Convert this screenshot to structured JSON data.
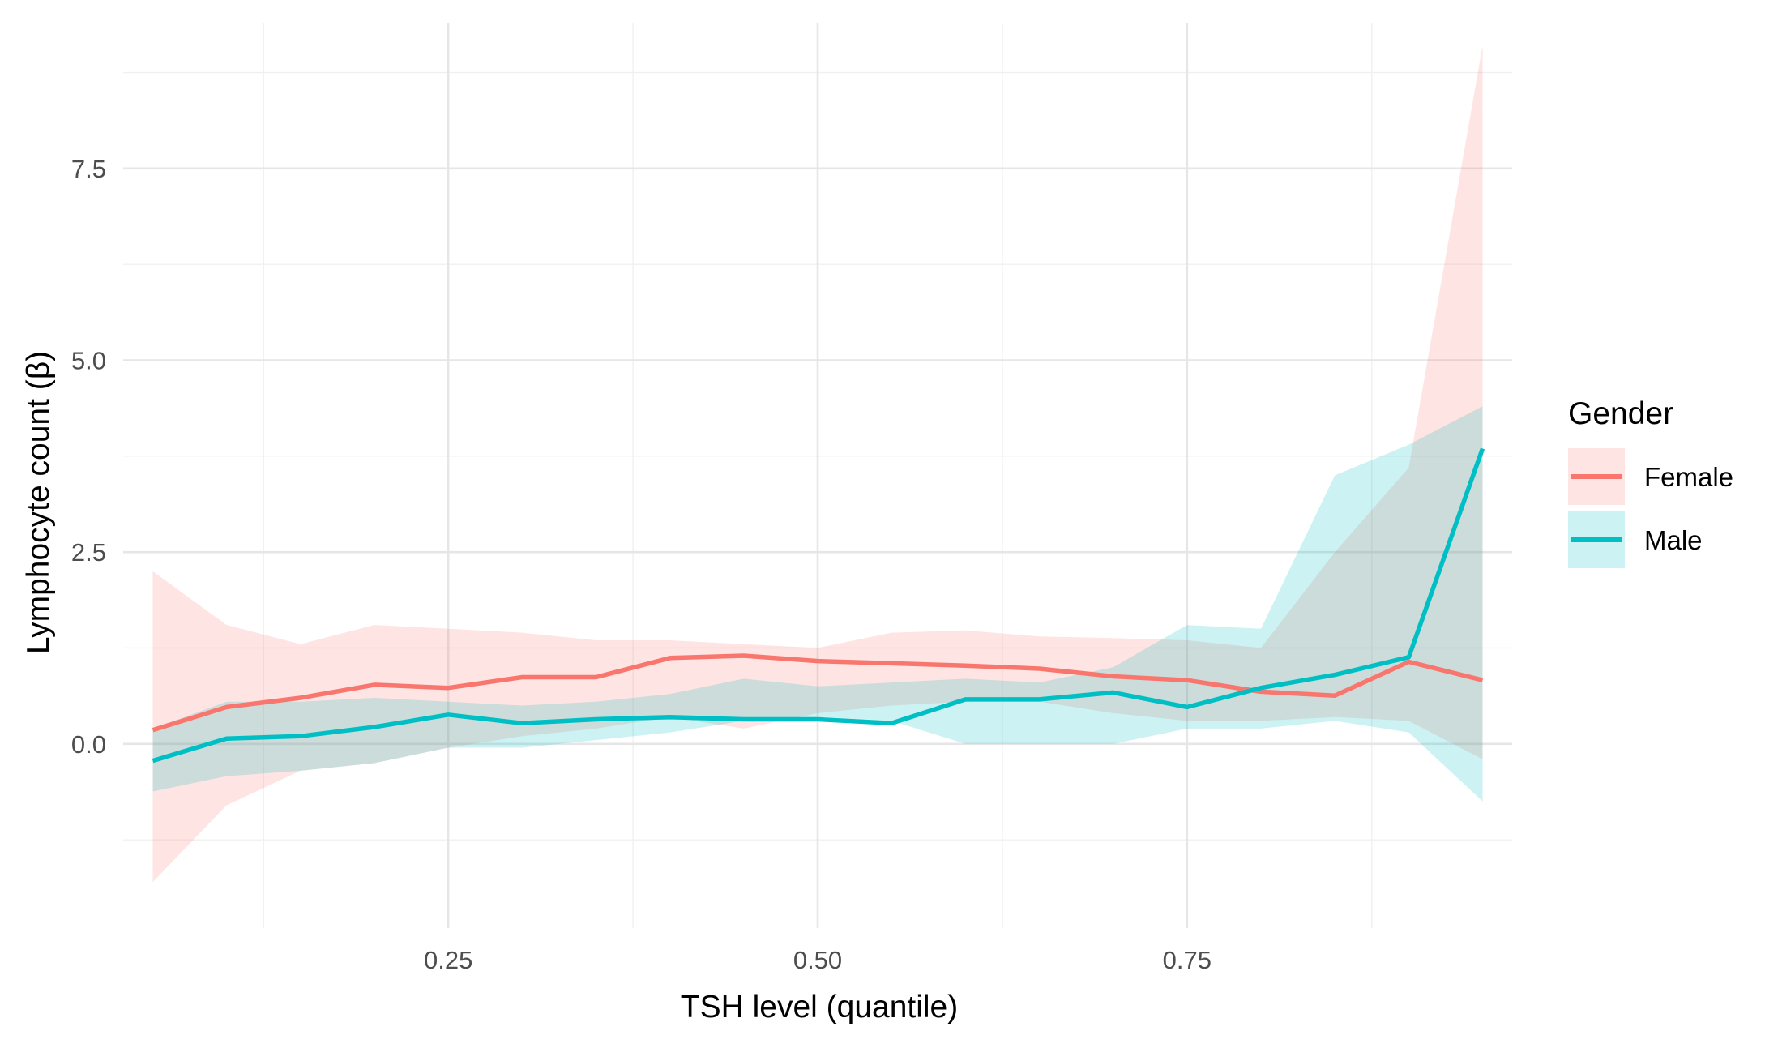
{
  "chart_data": {
    "type": "line",
    "title": "",
    "xlabel": "TSH level (quantile)",
    "ylabel": "Lymphocyte count (β)",
    "xlim": [
      0.03,
      0.97
    ],
    "ylim": [
      -2.4,
      9.4
    ],
    "x_ticks": [
      0.25,
      0.5,
      0.75
    ],
    "x_tick_labels": [
      "0.25",
      "0.50",
      "0.75"
    ],
    "y_ticks": [
      0.0,
      2.5,
      5.0,
      7.5
    ],
    "y_tick_labels": [
      "0.0",
      "2.5",
      "5.0",
      "7.5"
    ],
    "grid": true,
    "legend": {
      "title": "Gender",
      "position": "right"
    },
    "x": [
      0.05,
      0.1,
      0.15,
      0.2,
      0.25,
      0.3,
      0.35,
      0.4,
      0.45,
      0.5,
      0.55,
      0.6,
      0.65,
      0.7,
      0.75,
      0.8,
      0.85,
      0.9,
      0.95
    ],
    "series": [
      {
        "name": "Female",
        "color": "#F8766D",
        "values": [
          0.18,
          0.48,
          0.6,
          0.77,
          0.73,
          0.87,
          0.87,
          1.12,
          1.15,
          1.08,
          1.05,
          1.02,
          0.98,
          0.88,
          0.83,
          0.68,
          0.63,
          1.07,
          0.83
        ],
        "lower": [
          -1.8,
          -0.8,
          -0.35,
          -0.25,
          -0.05,
          0.1,
          0.2,
          0.35,
          0.2,
          0.4,
          0.5,
          0.55,
          0.55,
          0.4,
          0.3,
          0.3,
          0.35,
          0.3,
          -0.2
        ],
        "upper": [
          2.25,
          1.55,
          1.3,
          1.55,
          1.5,
          1.45,
          1.35,
          1.35,
          1.3,
          1.25,
          1.45,
          1.48,
          1.4,
          1.38,
          1.35,
          1.25,
          2.5,
          3.6,
          9.1
        ]
      },
      {
        "name": "Male",
        "color": "#00BFC4",
        "values": [
          -0.22,
          0.07,
          0.1,
          0.22,
          0.38,
          0.27,
          0.32,
          0.35,
          0.32,
          0.32,
          0.27,
          0.58,
          0.58,
          0.67,
          0.48,
          0.73,
          0.9,
          1.13,
          3.85
        ],
        "lower": [
          -0.62,
          -0.42,
          -0.35,
          -0.25,
          -0.05,
          -0.05,
          0.05,
          0.15,
          0.3,
          0.35,
          0.3,
          0.0,
          0.0,
          0.0,
          0.2,
          0.2,
          0.3,
          0.15,
          -0.75
        ],
        "upper": [
          0.2,
          0.55,
          0.55,
          0.6,
          0.55,
          0.5,
          0.55,
          0.65,
          0.85,
          0.75,
          0.8,
          0.85,
          0.8,
          1.0,
          1.55,
          1.5,
          3.5,
          3.9,
          4.4
        ]
      }
    ]
  }
}
